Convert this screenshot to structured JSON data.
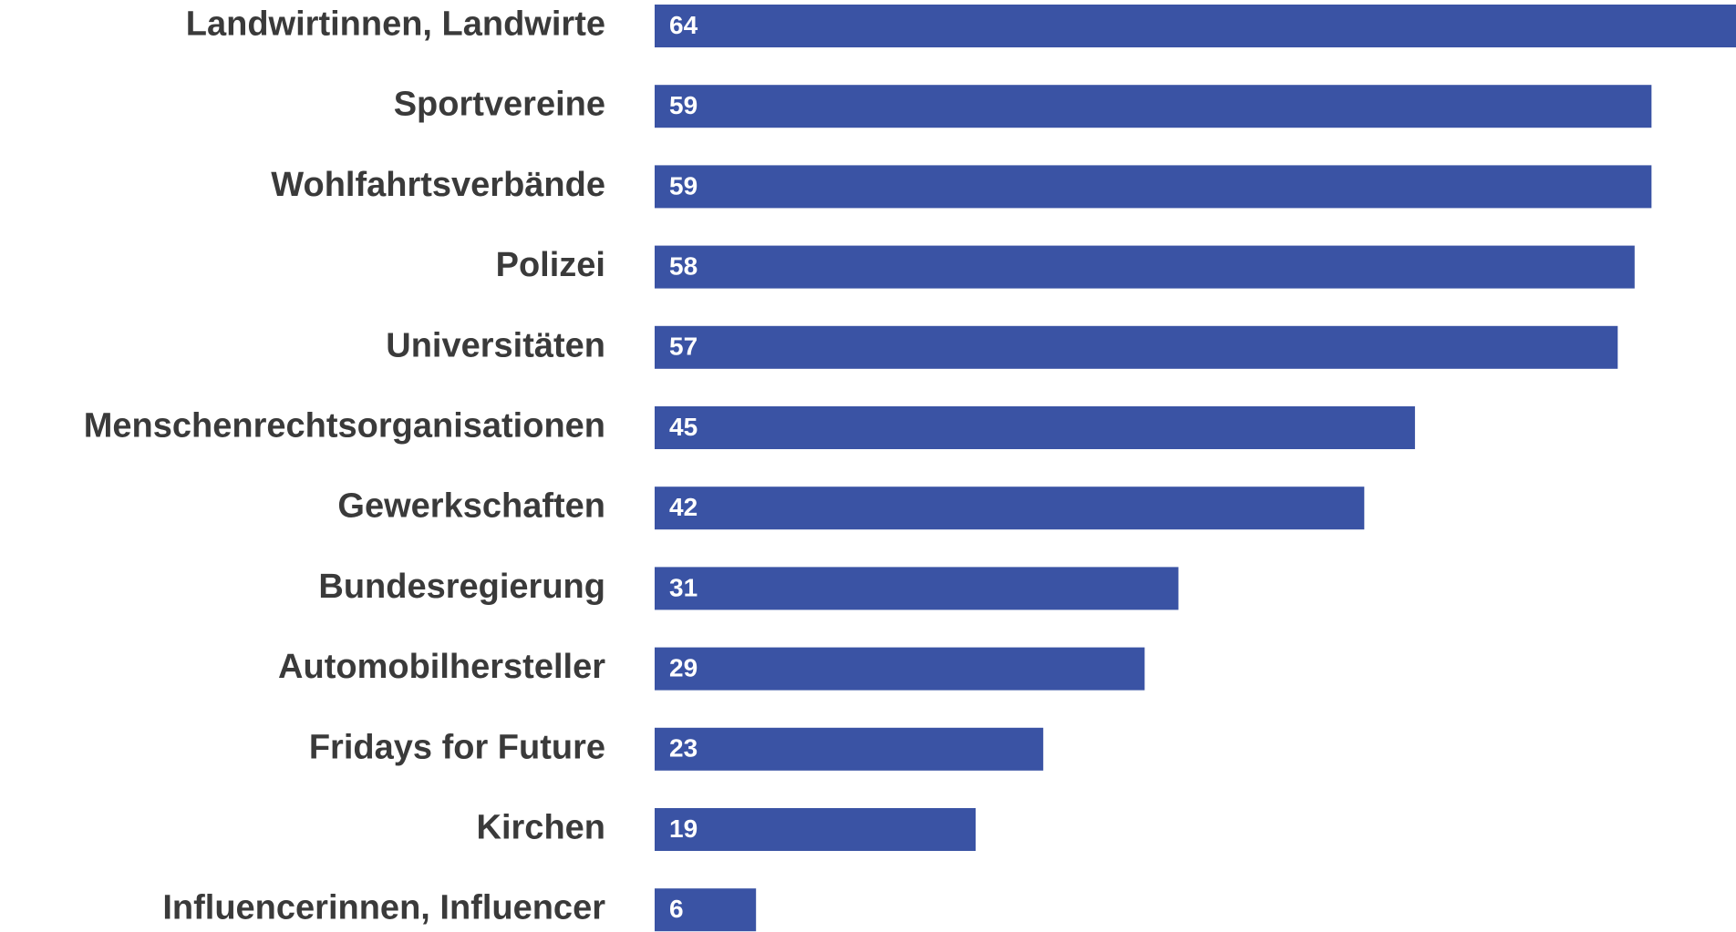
{
  "chart_data": {
    "type": "bar",
    "orientation": "horizontal",
    "categories": [
      "Landwirtinnen, Landwirte",
      "Sportvereine",
      "Wohlfahrtsverbände",
      "Polizei",
      "Universitäten",
      "Menschenrechtsorganisationen",
      "Gewerkschaften",
      "Bundesregierung",
      "Automobilhersteller",
      "Fridays for Future",
      "Kirchen",
      "Influencerinnen, Influencer"
    ],
    "values": [
      64,
      59,
      59,
      58,
      57,
      45,
      42,
      31,
      29,
      23,
      19,
      6
    ],
    "color": "#3a53a4",
    "xlim": [
      0,
      64
    ]
  }
}
